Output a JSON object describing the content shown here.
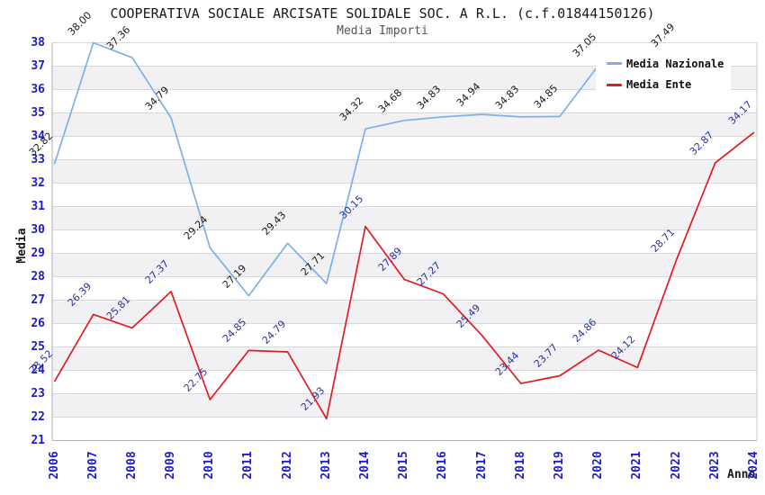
{
  "chart_data": {
    "type": "line",
    "title": "COOPERATIVA SOCIALE ARCISATE SOLIDALE SOC. A R.L. (c.f.01844150126)",
    "subtitle": "Media Importi",
    "xlabel": "Anno",
    "ylabel": "Media",
    "ylim": [
      21,
      38
    ],
    "y_tick_step": 1,
    "grid": "horizontal",
    "background_bands": "alternating-gray",
    "legend_position": "top-right",
    "x": [
      "2006",
      "2007",
      "2008",
      "2009",
      "2010",
      "2011",
      "2012",
      "2013",
      "2014",
      "2015",
      "2016",
      "2017",
      "2018",
      "2019",
      "2020",
      "2021",
      "2022",
      "2023",
      "2024"
    ],
    "series": [
      {
        "name": "Media Nazionale",
        "color": "#7db0e6",
        "label_color": "#1a1a1a",
        "values": [
          32.82,
          38.0,
          37.36,
          34.79,
          29.24,
          27.19,
          29.43,
          27.71,
          34.32,
          34.68,
          34.83,
          34.94,
          34.83,
          34.85,
          37.05,
          null,
          37.49,
          null,
          null
        ]
      },
      {
        "name": "Media Ente",
        "color": "#e11b22",
        "label_color": "#2b31a8",
        "values": [
          23.52,
          26.39,
          25.81,
          27.37,
          22.75,
          24.85,
          24.79,
          21.93,
          30.15,
          27.89,
          27.27,
          25.49,
          23.44,
          23.77,
          24.86,
          24.12,
          28.71,
          32.87,
          34.17
        ]
      }
    ]
  },
  "colors": {
    "tick_label_blue": "#1c1ccd",
    "gridline": "#d9d9d9",
    "band_gray": "#f1f1f3",
    "axis_border": "#b0b0b0",
    "title_black": "#1a1a1a",
    "subtitle_gray": "#555555"
  }
}
